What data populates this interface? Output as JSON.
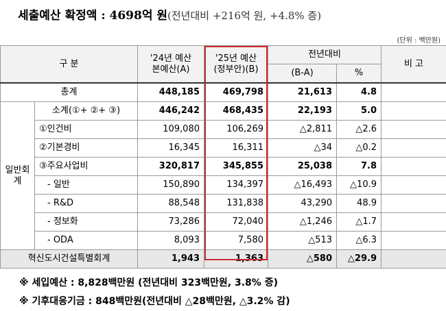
{
  "title": {
    "main": "세출예산 확정액 : 4698억 원",
    "sub": "(전년대비 +216억 원, +4.8% 증)"
  },
  "unit": "(단위 : 백만원)",
  "headers": {
    "category": "구 분",
    "col_2024_line1": "'24년 예산",
    "col_2024_line2": "본예산(A)",
    "col_2025_line1": "'25년 예산",
    "col_2025_line2": "(정부안)(B)",
    "yoy": "전년대비",
    "diff": "(B-A)",
    "pct": "%",
    "note": "비 고"
  },
  "group_label": "일반회계",
  "rows": [
    {
      "label": "총계",
      "a": "448,185",
      "b": "469,798",
      "diff": "21,613",
      "pct": "4.8"
    },
    {
      "label": "소계(①+ ②+ ③)",
      "a": "446,242",
      "b": "468,435",
      "diff": "22,193",
      "pct": "5.0"
    },
    {
      "label": "①인건비",
      "a": "109,080",
      "b": "106,269",
      "diff": "△2,811",
      "pct": "△2.6"
    },
    {
      "label": "②기본경비",
      "a": "16,345",
      "b": "16,311",
      "diff": "△34",
      "pct": "△0.2"
    },
    {
      "label": "③주요사업비",
      "a": "320,817",
      "b": "345,855",
      "diff": "25,038",
      "pct": "7.8"
    },
    {
      "label": "- 일반",
      "a": "150,890",
      "b": "134,397",
      "diff": "△16,493",
      "pct": "△10.9"
    },
    {
      "label": "- R&D",
      "a": "88,548",
      "b": "131,838",
      "diff": "43,290",
      "pct": "48.9"
    },
    {
      "label": "- 정보화",
      "a": "73,286",
      "b": "72,040",
      "diff": "△1,246",
      "pct": "△1.7"
    },
    {
      "label": "- ODA",
      "a": "8,093",
      "b": "7,580",
      "diff": "△513",
      "pct": "△6.3"
    },
    {
      "label": "혁신도시건설특별회계",
      "a": "1,943",
      "b": "1,363",
      "diff": "△580",
      "pct": "△29.9"
    }
  ],
  "notes": [
    "※ 세입예산 : 8,828백만원 (전년대비 323백만원, 3.8% 증)",
    "※ 기후대응기금 : 848백만원(전년대비 △28백만원, △3.2% 감)"
  ]
}
